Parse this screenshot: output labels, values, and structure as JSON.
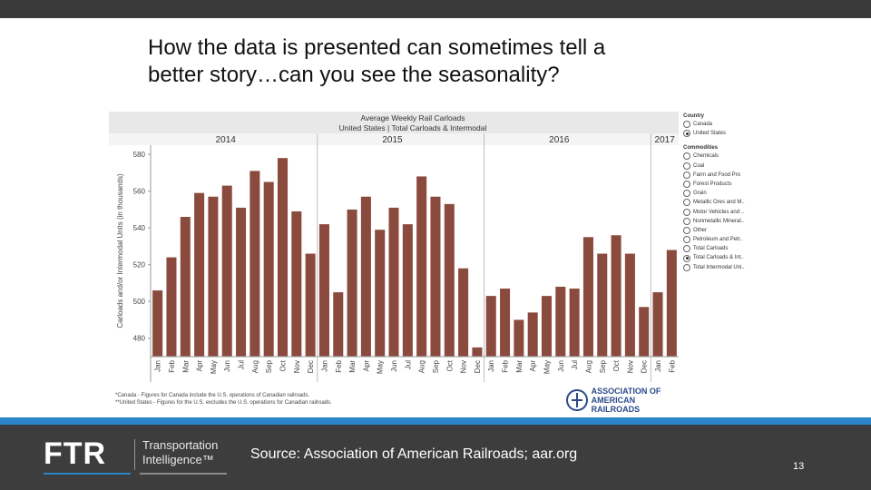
{
  "slide": {
    "title_line1": "How the data is presented can sometimes tell a",
    "title_line2": "better story…can you see the seasonality?",
    "source": "Source: Association of American Railroads; aar.org",
    "page_number": "13"
  },
  "branding": {
    "ftr_word": "FTR",
    "ftr_sub_line1": "Transportation",
    "ftr_sub_line2": "Intelligence™",
    "aar_line1": "ASSOCIATION OF",
    "aar_line2": "AMERICAN RAILROADS"
  },
  "legend": {
    "country_heading": "Country",
    "countries": [
      {
        "label": "Canada",
        "selected": false
      },
      {
        "label": "United States",
        "selected": true
      }
    ],
    "commodities_heading": "Commodities",
    "commodities": [
      {
        "label": "Chemicals",
        "selected": false
      },
      {
        "label": "Coal",
        "selected": false
      },
      {
        "label": "Farm and Food Pro",
        "selected": false
      },
      {
        "label": "Forest Products",
        "selected": false
      },
      {
        "label": "Grain",
        "selected": false
      },
      {
        "label": "Metallic Ores and M..",
        "selected": false
      },
      {
        "label": "Motor Vehicles and ..",
        "selected": false
      },
      {
        "label": "Nonmetallic Mineral..",
        "selected": false
      },
      {
        "label": "Other",
        "selected": false
      },
      {
        "label": "Petroleum and Petr..",
        "selected": false
      },
      {
        "label": "Total Carloads",
        "selected": false
      },
      {
        "label": "Total Carloads & Int..",
        "selected": true
      },
      {
        "label": "Total Intermodal Uni..",
        "selected": false
      }
    ]
  },
  "footnotes": {
    "line1": "*Canada - Figures for Canada include the U.S. operations of Canadian railroads.",
    "line2": "**United States - Figures for the U.S. excludes the U.S. operations for Canadian railroads."
  },
  "colors": {
    "bar": "#8b4a3e",
    "header_band": "#e8e8e8",
    "footer": "#3d3d3d",
    "accent_blue": "#2a86c8"
  },
  "chart_data": {
    "type": "bar",
    "title": "Average Weekly Rail Carloads",
    "subtitle": "United States | Total Carloads & Intermodal",
    "ylabel": "Carloads and/or Intermodal Units (in thousands)",
    "ylim": [
      470,
      585
    ],
    "yticks": [
      480,
      500,
      520,
      540,
      560,
      580
    ],
    "ytick_labels": [
      "480",
      "500",
      "520",
      "540",
      "560",
      "580"
    ],
    "years": [
      {
        "label": "2014",
        "start": 0,
        "count": 12
      },
      {
        "label": "2015",
        "start": 12,
        "count": 12
      },
      {
        "label": "2016",
        "start": 24,
        "count": 12
      },
      {
        "label": "2017",
        "start": 36,
        "count": 2
      }
    ],
    "categories": [
      "Jan",
      "Feb",
      "Mar",
      "Apr",
      "May",
      "Jun",
      "Jul",
      "Aug",
      "Sep",
      "Oct",
      "Nov",
      "Dec",
      "Jan",
      "Feb",
      "Mar",
      "Apr",
      "May",
      "Jun",
      "Jul",
      "Aug",
      "Sep",
      "Oct",
      "Nov",
      "Dec",
      "Jan",
      "Feb",
      "Mar",
      "Apr",
      "May",
      "Jun",
      "Jul",
      "Aug",
      "Sep",
      "Oct",
      "Nov",
      "Dec",
      "Jan",
      "Feb"
    ],
    "values": [
      506,
      524,
      546,
      559,
      557,
      563,
      551,
      571,
      565,
      578,
      549,
      526,
      542,
      505,
      550,
      557,
      539,
      551,
      542,
      568,
      557,
      553,
      518,
      475,
      503,
      507,
      490,
      494,
      503,
      508,
      507,
      535,
      526,
      536,
      526,
      497,
      505,
      528
    ]
  }
}
